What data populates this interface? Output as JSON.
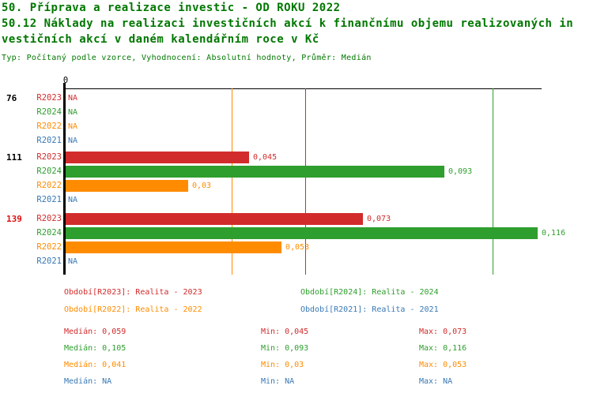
{
  "header": {
    "title_line1": "50. Příprava a realizace investic - OD ROKU 2022",
    "title_line2": "50.12 Náklady na realizaci investičních akcí k finančnímu objemu realizovaných in",
    "title_line3": "vestičních akcí v daném kalendářním roce v Kč",
    "meta": "Typ: Počítaný podle vzorce, Vyhodnocení: Absolutní hodnoty, Průměr: Medián"
  },
  "colors": {
    "title": "#007700",
    "axis": "#000000",
    "group_label": "#000000",
    "group_label_highlight": "#dd1111",
    "series": {
      "R2023": "#d22b2b",
      "R2024": "#2e9e2e",
      "R2022": "#ff8c00",
      "R2021": "#3878b4"
    }
  },
  "axis": {
    "zero_label": "0",
    "xlim": [
      0,
      0.117
    ]
  },
  "chart_data": {
    "type": "bar",
    "orientation": "horizontal",
    "na_text": "NA",
    "series_order": [
      "R2023",
      "R2024",
      "R2022",
      "R2021"
    ],
    "groups": [
      {
        "label": "76",
        "highlight": false,
        "rows": [
          {
            "series": "R2023",
            "value": null,
            "display": "NA"
          },
          {
            "series": "R2024",
            "value": null,
            "display": "NA"
          },
          {
            "series": "R2022",
            "value": null,
            "display": "NA"
          },
          {
            "series": "R2021",
            "value": null,
            "display": "NA"
          }
        ]
      },
      {
        "label": "111",
        "highlight": false,
        "rows": [
          {
            "series": "R2023",
            "value": 0.045,
            "display": "0,045"
          },
          {
            "series": "R2024",
            "value": 0.093,
            "display": "0,093"
          },
          {
            "series": "R2022",
            "value": 0.03,
            "display": "0,03"
          },
          {
            "series": "R2021",
            "value": null,
            "display": "NA"
          }
        ]
      },
      {
        "label": "139",
        "highlight": true,
        "rows": [
          {
            "series": "R2023",
            "value": 0.073,
            "display": "0,073"
          },
          {
            "series": "R2024",
            "value": 0.116,
            "display": "0,116"
          },
          {
            "series": "R2022",
            "value": 0.053,
            "display": "0,053"
          },
          {
            "series": "R2021",
            "value": null,
            "display": "NA"
          }
        ]
      }
    ],
    "median_lines": [
      {
        "series": "R2022",
        "value": 0.041
      },
      {
        "series": "R2023",
        "value": 0.059
      },
      {
        "series": "R2024",
        "value": 0.105
      }
    ]
  },
  "legend": {
    "left": [
      {
        "series": "R2023",
        "label": "Období[R2023]: Realita - 2023"
      },
      {
        "series": "R2022",
        "label": "Období[R2022]: Realita - 2022"
      }
    ],
    "right": [
      {
        "series": "R2024",
        "label": "Období[R2024]: Realita - 2024"
      },
      {
        "series": "R2021",
        "label": "Období[R2021]: Realita - 2021"
      }
    ]
  },
  "stats": {
    "labels": {
      "median": "Medián",
      "min": "Min",
      "max": "Max"
    },
    "rows": [
      {
        "series": "R2023",
        "median": "0,059",
        "min": "0,045",
        "max": "0,073"
      },
      {
        "series": "R2024",
        "median": "0,105",
        "min": "0,093",
        "max": "0,116"
      },
      {
        "series": "R2022",
        "median": "0,041",
        "min": "0,03",
        "max": "0,053"
      },
      {
        "series": "R2021",
        "median": "NA",
        "min": "NA",
        "max": "NA"
      }
    ]
  }
}
